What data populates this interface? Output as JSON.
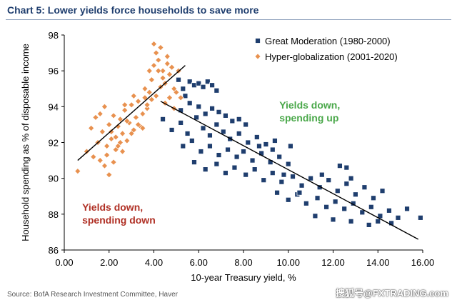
{
  "header": {
    "title": "Chart 5: Lower yields force households to save more"
  },
  "footer": {
    "source": "Source: BofA Research Investment Committee, Haver",
    "watermark": "搜狐号@FXTRADING.com"
  },
  "colors": {
    "title": "#1f3e6e",
    "series_gm": "#1f3e6e",
    "series_hg": "#e8914f",
    "annot_up": "#4aa84a",
    "annot_down": "#b03025"
  },
  "chart_data": {
    "type": "scatter",
    "title": "Chart 5: Lower yields force households to save more",
    "xlabel": "10-year Treasury yield, %",
    "ylabel": "Household spending as % of disposable income",
    "xlim": [
      0,
      16
    ],
    "ylim": [
      86,
      98
    ],
    "xticks": [
      0,
      2,
      4,
      6,
      8,
      10,
      12,
      14,
      16
    ],
    "xtick_labels": [
      "0.00",
      "2.00",
      "4.00",
      "6.00",
      "8.00",
      "10.00",
      "12.00",
      "14.00",
      "16.00"
    ],
    "yticks": [
      86,
      88,
      90,
      92,
      94,
      96,
      98
    ],
    "ytick_labels": [
      "86",
      "88",
      "90",
      "92",
      "94",
      "96",
      "98"
    ],
    "legend_position": "top-right",
    "series": [
      {
        "name": "Great Moderation (1980-2000)",
        "marker": "square",
        "points": [
          [
            5.1,
            95.5
          ],
          [
            5.3,
            95.0
          ],
          [
            5.4,
            94.6
          ],
          [
            5.6,
            95.4
          ],
          [
            5.8,
            95.2
          ],
          [
            6.0,
            95.3
          ],
          [
            6.2,
            95.1
          ],
          [
            6.4,
            95.4
          ],
          [
            6.6,
            95.2
          ],
          [
            6.8,
            94.9
          ],
          [
            5.2,
            93.8
          ],
          [
            5.6,
            94.2
          ],
          [
            6.0,
            94.0
          ],
          [
            6.3,
            93.6
          ],
          [
            6.6,
            93.9
          ],
          [
            6.9,
            93.7
          ],
          [
            7.2,
            93.5
          ],
          [
            7.5,
            93.2
          ],
          [
            7.8,
            93.3
          ],
          [
            8.1,
            93.0
          ],
          [
            4.4,
            93.3
          ],
          [
            4.8,
            92.7
          ],
          [
            5.2,
            93.1
          ],
          [
            5.5,
            92.5
          ],
          [
            5.9,
            93.4
          ],
          [
            6.2,
            92.8
          ],
          [
            6.5,
            92.4
          ],
          [
            6.8,
            93.0
          ],
          [
            7.1,
            92.6
          ],
          [
            7.4,
            92.2
          ],
          [
            7.8,
            92.5
          ],
          [
            8.2,
            92.0
          ],
          [
            8.6,
            92.3
          ],
          [
            9.0,
            91.9
          ],
          [
            9.4,
            92.1
          ],
          [
            5.3,
            91.8
          ],
          [
            5.7,
            92.1
          ],
          [
            6.1,
            91.5
          ],
          [
            6.5,
            91.8
          ],
          [
            6.9,
            91.3
          ],
          [
            7.3,
            91.6
          ],
          [
            7.7,
            91.2
          ],
          [
            8.0,
            91.5
          ],
          [
            8.4,
            91.0
          ],
          [
            8.8,
            91.4
          ],
          [
            9.2,
            90.9
          ],
          [
            9.6,
            91.2
          ],
          [
            10.0,
            90.8
          ],
          [
            5.8,
            90.9
          ],
          [
            6.3,
            90.5
          ],
          [
            6.8,
            90.8
          ],
          [
            7.2,
            90.3
          ],
          [
            7.6,
            90.6
          ],
          [
            8.1,
            90.2
          ],
          [
            8.5,
            90.5
          ],
          [
            8.9,
            89.9
          ],
          [
            9.3,
            90.3
          ],
          [
            9.7,
            89.8
          ],
          [
            10.2,
            90.1
          ],
          [
            10.6,
            89.6
          ],
          [
            11.0,
            90.0
          ],
          [
            11.4,
            89.5
          ],
          [
            11.8,
            89.9
          ],
          [
            12.2,
            89.3
          ],
          [
            12.6,
            89.7
          ],
          [
            13.0,
            89.1
          ],
          [
            13.4,
            89.5
          ],
          [
            13.8,
            88.9
          ],
          [
            14.2,
            89.3
          ],
          [
            9.5,
            89.2
          ],
          [
            10.0,
            88.8
          ],
          [
            10.4,
            89.1
          ],
          [
            10.8,
            88.6
          ],
          [
            11.3,
            88.9
          ],
          [
            11.7,
            88.4
          ],
          [
            12.1,
            88.7
          ],
          [
            12.5,
            88.3
          ],
          [
            12.9,
            88.6
          ],
          [
            13.3,
            88.1
          ],
          [
            13.7,
            88.4
          ],
          [
            14.1,
            87.9
          ],
          [
            14.5,
            88.2
          ],
          [
            14.9,
            87.8
          ],
          [
            11.2,
            87.9
          ],
          [
            12.0,
            87.7
          ],
          [
            12.8,
            87.6
          ],
          [
            13.6,
            87.4
          ],
          [
            14.0,
            87.6
          ],
          [
            14.6,
            87.5
          ],
          [
            15.3,
            88.3
          ],
          [
            15.9,
            87.8
          ],
          [
            12.6,
            90.6
          ],
          [
            12.3,
            90.7
          ],
          [
            12.8,
            90.0
          ],
          [
            9.3,
            91.6
          ],
          [
            10.1,
            91.8
          ],
          [
            8.7,
            91.8
          ],
          [
            9.8,
            90.2
          ],
          [
            10.5,
            89.2
          ],
          [
            11.5,
            90.2
          ]
        ]
      },
      {
        "name": "Hyper-globalization (2001-2020)",
        "marker": "diamond",
        "points": [
          [
            0.6,
            90.4
          ],
          [
            1.0,
            91.5
          ],
          [
            1.2,
            92.8
          ],
          [
            1.4,
            93.4
          ],
          [
            1.5,
            92.0
          ],
          [
            1.6,
            93.6
          ],
          [
            1.7,
            92.6
          ],
          [
            1.8,
            94.0
          ],
          [
            1.9,
            91.8
          ],
          [
            2.0,
            93.0
          ],
          [
            2.1,
            92.2
          ],
          [
            2.2,
            93.5
          ],
          [
            2.3,
            91.6
          ],
          [
            2.4,
            92.9
          ],
          [
            2.5,
            93.3
          ],
          [
            2.6,
            92.5
          ],
          [
            2.7,
            93.8
          ],
          [
            2.8,
            92.1
          ],
          [
            2.9,
            93.1
          ],
          [
            3.0,
            94.1
          ],
          [
            3.1,
            92.7
          ],
          [
            3.2,
            93.4
          ],
          [
            3.3,
            94.3
          ],
          [
            3.4,
            92.9
          ],
          [
            3.5,
            93.6
          ],
          [
            3.6,
            94.5
          ],
          [
            3.7,
            93.9
          ],
          [
            3.8,
            94.8
          ],
          [
            3.9,
            95.5
          ],
          [
            4.0,
            96.3
          ],
          [
            4.1,
            97.0
          ],
          [
            4.2,
            96.6
          ],
          [
            4.3,
            97.3
          ],
          [
            4.4,
            96.0
          ],
          [
            4.5,
            95.3
          ],
          [
            4.6,
            96.8
          ],
          [
            4.7,
            95.8
          ],
          [
            4.8,
            96.2
          ],
          [
            4.9,
            95.0
          ],
          [
            5.0,
            94.8
          ],
          [
            5.1,
            96.0
          ],
          [
            5.2,
            94.5
          ],
          [
            1.3,
            91.2
          ],
          [
            1.6,
            91.0
          ],
          [
            1.8,
            90.7
          ],
          [
            2.0,
            90.2
          ],
          [
            2.2,
            90.9
          ],
          [
            1.9,
            91.3
          ],
          [
            2.4,
            91.8
          ],
          [
            2.6,
            91.5
          ],
          [
            2.1,
            92.6
          ],
          [
            2.3,
            92.3
          ],
          [
            2.5,
            92.0
          ],
          [
            2.8,
            93.2
          ],
          [
            3.0,
            92.5
          ],
          [
            3.3,
            93.0
          ],
          [
            3.5,
            92.8
          ],
          [
            3.7,
            94.1
          ],
          [
            3.9,
            94.4
          ],
          [
            4.1,
            94.6
          ],
          [
            4.3,
            95.1
          ],
          [
            4.5,
            94.2
          ],
          [
            4.7,
            94.5
          ],
          [
            4.9,
            93.9
          ],
          [
            3.6,
            95.0
          ],
          [
            3.8,
            96.0
          ],
          [
            4.0,
            97.5
          ],
          [
            4.2,
            96.0
          ],
          [
            4.4,
            95.6
          ],
          [
            4.6,
            96.4
          ],
          [
            2.7,
            94.1
          ],
          [
            3.1,
            94.6
          ]
        ]
      }
    ],
    "trendlines": [
      {
        "series": "Hyper-globalization (2001-2020)",
        "from": [
          0.6,
          91.0
        ],
        "to": [
          5.4,
          96.3
        ]
      },
      {
        "series": "Great Moderation (1980-2000)",
        "from": [
          4.3,
          94.3
        ],
        "to": [
          15.8,
          86.6
        ]
      }
    ],
    "annotations": [
      {
        "id": "up",
        "lines": [
          "Yields down,",
          "spending up"
        ],
        "at": [
          9.6,
          93.9
        ]
      },
      {
        "id": "down",
        "lines": [
          "Yields down,",
          "spending down"
        ],
        "at": [
          0.8,
          88.2
        ]
      }
    ]
  }
}
